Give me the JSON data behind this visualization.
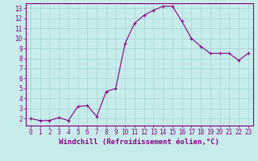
{
  "x": [
    0,
    1,
    2,
    3,
    4,
    5,
    6,
    7,
    8,
    9,
    10,
    11,
    12,
    13,
    14,
    15,
    16,
    17,
    18,
    19,
    20,
    21,
    22,
    23
  ],
  "y": [
    2,
    1.8,
    1.8,
    2.1,
    1.8,
    3.2,
    3.3,
    2.2,
    4.7,
    5.0,
    9.5,
    11.5,
    12.3,
    12.8,
    13.2,
    13.2,
    11.7,
    10.0,
    9.2,
    8.5,
    8.5,
    8.5,
    7.8,
    8.5
  ],
  "line_color": "#8b008b",
  "marker": "+",
  "bg_color": "#c8ecec",
  "grid_color": "#a8d8d8",
  "xlabel": "Windchill (Refroidissement éolien,°C)",
  "xlim": [
    -0.5,
    23.5
  ],
  "ylim": [
    1.3,
    13.5
  ],
  "yticks": [
    2,
    3,
    4,
    5,
    6,
    7,
    8,
    9,
    10,
    11,
    12,
    13
  ],
  "xticks": [
    0,
    1,
    2,
    3,
    4,
    5,
    6,
    7,
    8,
    9,
    10,
    11,
    12,
    13,
    14,
    15,
    16,
    17,
    18,
    19,
    20,
    21,
    22,
    23
  ],
  "tick_color": "#8b008b",
  "label_color": "#8b008b",
  "font_size": 5.5,
  "xlabel_fontsize": 6.5
}
